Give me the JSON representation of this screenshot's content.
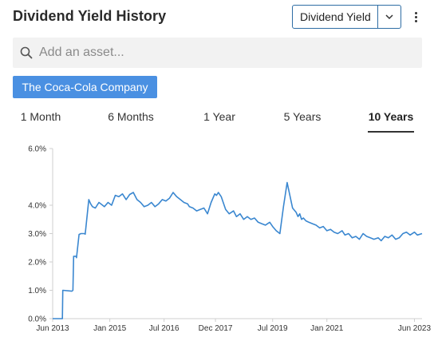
{
  "header": {
    "title": "Dividend Yield History",
    "metric_select": "Dividend Yield"
  },
  "search": {
    "placeholder": "Add an asset..."
  },
  "asset_chip": "The Coca-Cola Company",
  "tabs": [
    {
      "label": "1 Month",
      "active": false
    },
    {
      "label": "6 Months",
      "active": false
    },
    {
      "label": "1 Year",
      "active": false
    },
    {
      "label": "5 Years",
      "active": false
    },
    {
      "label": "10 Years",
      "active": true
    }
  ],
  "colors": {
    "accent": "#4a90e2",
    "line": "#3a87d0",
    "border": "#2e6da4"
  },
  "chart_data": {
    "type": "line",
    "y_unit": "%",
    "ylim": [
      0,
      6
    ],
    "y_ticks": [
      "0.0%",
      "1.0%",
      "2.0%",
      "3.0%",
      "4.0%",
      "6.0%"
    ],
    "y_tick_values": [
      0,
      1,
      2,
      3,
      4,
      6
    ],
    "x_ticks": [
      "Jun 2013",
      "Jan 2015",
      "Jul 2016",
      "Dec 2017",
      "Jul 2019",
      "Jan 2021",
      "Jun 2023"
    ],
    "x_tick_values": [
      2013.42,
      2015.0,
      2016.5,
      2017.92,
      2019.5,
      2021.0,
      2023.42
    ],
    "xlim": [
      2013.42,
      2023.63
    ],
    "grid": false,
    "series": [
      {
        "x": [
          2013.42,
          2013.69,
          2013.7,
          2013.95,
          2013.98,
          2014.0,
          2014.07,
          2014.08,
          2014.15,
          2014.2,
          2014.3,
          2014.32,
          2014.42,
          2014.47,
          2014.52,
          2014.6,
          2014.7,
          2014.8,
          2014.85,
          2014.95,
          2015.05,
          2015.15,
          2015.25,
          2015.35,
          2015.45,
          2015.55,
          2015.65,
          2015.75,
          2015.85,
          2015.95,
          2016.05,
          2016.15,
          2016.25,
          2016.35,
          2016.45,
          2016.55,
          2016.65,
          2016.75,
          2016.85,
          2016.95,
          2017.05,
          2017.15,
          2017.2,
          2017.3,
          2017.4,
          2017.5,
          2017.6,
          2017.7,
          2017.8,
          2017.9,
          2017.95,
          2018.0,
          2018.08,
          2018.2,
          2018.3,
          2018.42,
          2018.5,
          2018.6,
          2018.7,
          2018.8,
          2018.9,
          2019.0,
          2019.1,
          2019.2,
          2019.3,
          2019.42,
          2019.5,
          2019.6,
          2019.7,
          2019.8,
          2019.9,
          2020.05,
          2020.15,
          2020.2,
          2020.25,
          2020.3,
          2020.35,
          2020.42,
          2020.5,
          2020.6,
          2020.7,
          2020.8,
          2020.9,
          2021.0,
          2021.1,
          2021.2,
          2021.3,
          2021.42,
          2021.5,
          2021.6,
          2021.7,
          2021.8,
          2021.9,
          2022.0,
          2022.1,
          2022.2,
          2022.3,
          2022.42,
          2022.5,
          2022.6,
          2022.7,
          2022.8,
          2022.9,
          2023.0,
          2023.1,
          2023.2,
          2023.3,
          2023.42,
          2023.5,
          2023.63
        ],
        "y": [
          0,
          0,
          1.0,
          0.97,
          1.0,
          2.2,
          2.2,
          2.15,
          2.97,
          3.0,
          3.0,
          2.98,
          4.2,
          4.05,
          3.95,
          3.9,
          4.1,
          4.0,
          3.95,
          4.1,
          4.0,
          4.35,
          4.3,
          4.4,
          4.2,
          4.38,
          4.45,
          4.2,
          4.1,
          3.95,
          4.0,
          4.1,
          3.95,
          4.05,
          4.2,
          4.15,
          4.25,
          4.45,
          4.3,
          4.2,
          4.1,
          4.05,
          3.95,
          3.9,
          3.8,
          3.85,
          3.9,
          3.7,
          4.1,
          4.4,
          4.35,
          4.45,
          4.3,
          3.85,
          3.7,
          3.8,
          3.6,
          3.7,
          3.5,
          3.6,
          3.5,
          3.55,
          3.4,
          3.35,
          3.3,
          3.4,
          3.25,
          3.1,
          3.0,
          3.95,
          4.8,
          3.9,
          3.75,
          3.6,
          3.7,
          3.5,
          3.55,
          3.45,
          3.4,
          3.35,
          3.3,
          3.2,
          3.25,
          3.1,
          3.15,
          3.05,
          3.0,
          3.1,
          2.95,
          3.0,
          2.85,
          2.9,
          2.8,
          3.0,
          2.9,
          2.85,
          2.8,
          2.85,
          2.75,
          2.9,
          2.85,
          2.95,
          2.8,
          2.85,
          3.0,
          3.05,
          2.95,
          3.05,
          2.95,
          3.0
        ]
      }
    ]
  }
}
